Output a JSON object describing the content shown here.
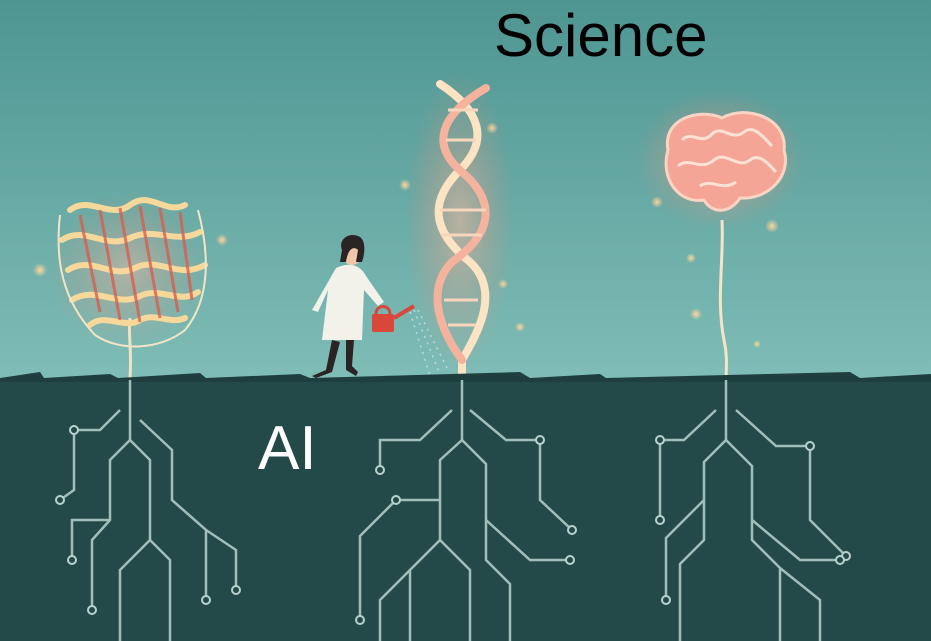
{
  "labels": {
    "top": "Science",
    "bottom": "AI"
  },
  "colors": {
    "sky_top": "#4e9592",
    "sky_bottom": "#7fbdb6",
    "ground": "#234a49",
    "glow": "#f08a73",
    "circuit": "#b8d3cd"
  }
}
